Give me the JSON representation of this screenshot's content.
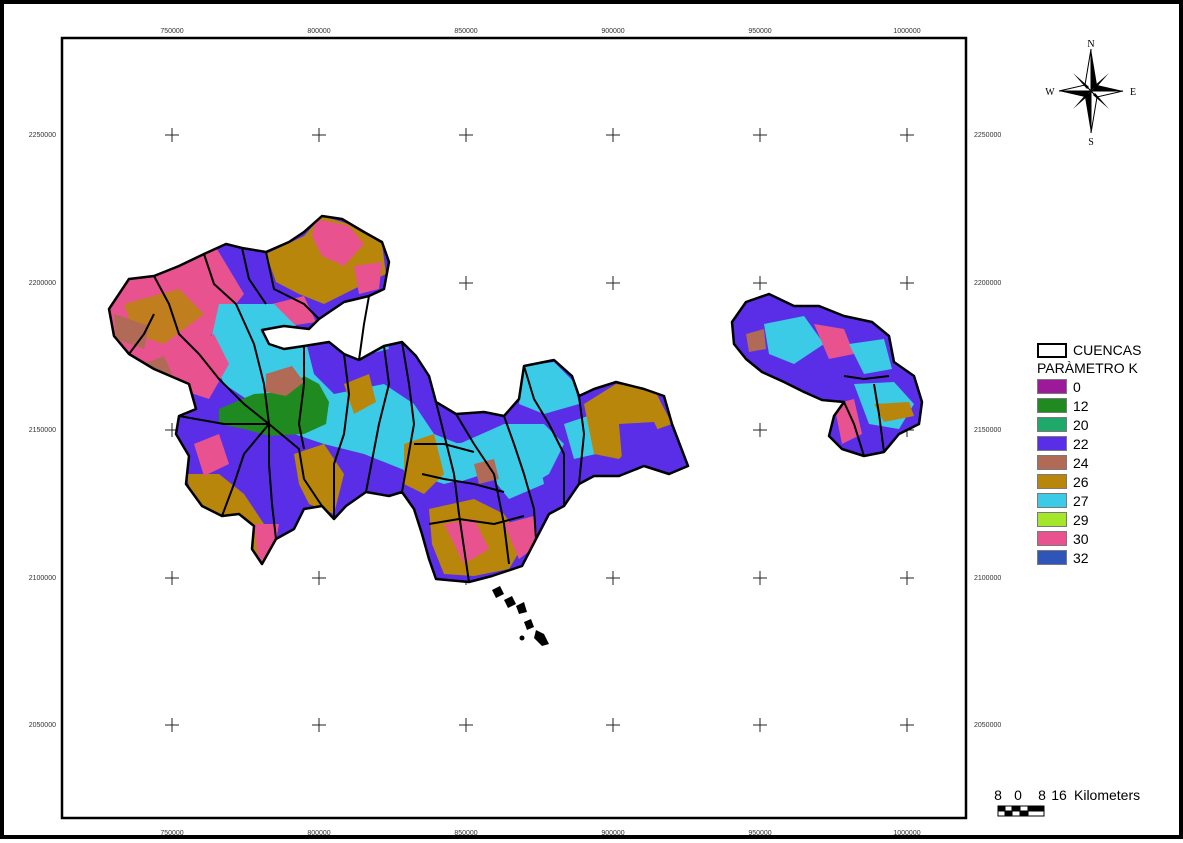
{
  "map": {
    "x_ticks": [
      "750000",
      "800000",
      "850000",
      "900000",
      "950000",
      "1000000"
    ],
    "y_ticks": [
      "2250000",
      "2200000",
      "2150000",
      "2100000",
      "2050000"
    ],
    "grid_marks": "crosses"
  },
  "north_arrow": {
    "n": "N",
    "s": "S",
    "e": "E",
    "w": "W"
  },
  "legend": {
    "boundary_label": "CUENCAS",
    "title": "PARÀMETRO K",
    "items": [
      {
        "value": "0",
        "color": "#9c1a9a"
      },
      {
        "value": "12",
        "color": "#1f8a1f"
      },
      {
        "value": "20",
        "color": "#1ea86a"
      },
      {
        "value": "22",
        "color": "#5a2ee6"
      },
      {
        "value": "24",
        "color": "#b06a55"
      },
      {
        "value": "26",
        "color": "#b8860b"
      },
      {
        "value": "27",
        "color": "#3ccbe6"
      },
      {
        "value": "29",
        "color": "#a3e62a"
      },
      {
        "value": "30",
        "color": "#e8538f"
      },
      {
        "value": "32",
        "color": "#2f55b8"
      }
    ]
  },
  "scale_bar": {
    "labels": [
      "8",
      "0",
      "8",
      "16"
    ],
    "unit": "Kilometers"
  }
}
